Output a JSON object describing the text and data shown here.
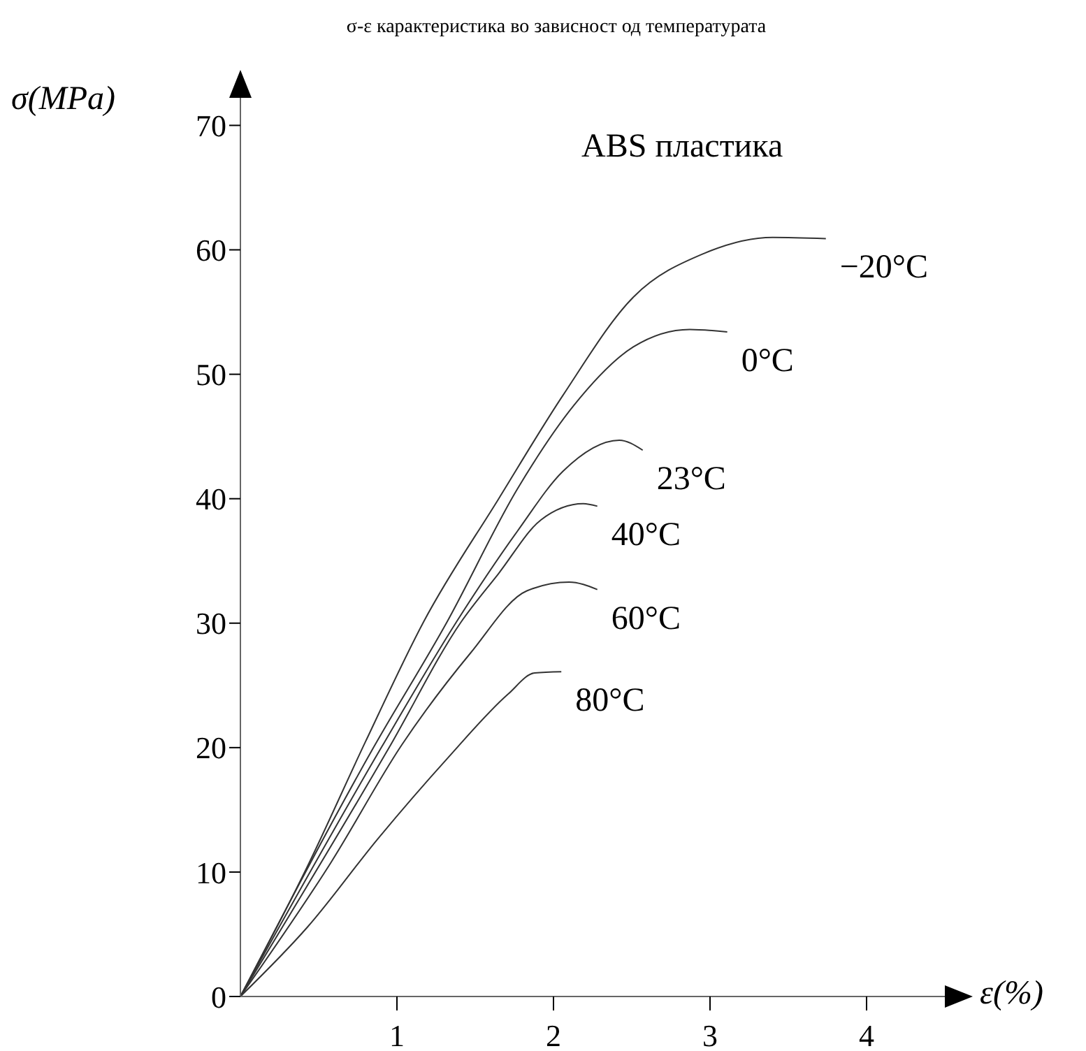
{
  "chart_data": {
    "type": "line",
    "title": "σ-ε карактеристика во зависност од температурата",
    "xlabel": "ε(%)",
    "ylabel": "σ(MPa)",
    "annotations": [
      "ABS пластика"
    ],
    "xlim": [
      0,
      4.5
    ],
    "xticks": [
      1,
      2,
      3,
      4
    ],
    "ylim": [
      0,
      73
    ],
    "yticks": [
      0,
      10,
      20,
      30,
      40,
      50,
      60,
      70
    ],
    "grid": false,
    "legend": false,
    "marker": "none",
    "line_style": "solid",
    "series": [
      {
        "name": "−20°C",
        "color": "#333333",
        "x": [
          0,
          0.43,
          0.8,
          1.17,
          1.65,
          2.06,
          2.51,
          2.96,
          3.4,
          3.74
        ],
        "values": [
          0,
          10.5,
          20.5,
          30.1,
          40,
          48.3,
          56.2,
          59.7,
          61,
          60.9
        ]
      },
      {
        "name": "0°C",
        "color": "#333333",
        "x": [
          0,
          0.85,
          1.32,
          1.77,
          2.13,
          2.51,
          2.87,
          3.11
        ],
        "values": [
          0,
          20,
          30.1,
          40.8,
          47.5,
          52.2,
          53.6,
          53.4
        ]
      },
      {
        "name": "23°C",
        "color": "#333333",
        "x": [
          0,
          0.9,
          1.38,
          1.77,
          2.06,
          2.42,
          2.57
        ],
        "values": [
          0,
          20,
          30.1,
          37.4,
          42.2,
          44.7,
          43.9
        ]
      },
      {
        "name": "40°C",
        "color": "#333333",
        "x": [
          0,
          0.95,
          1.41,
          1.65,
          1.92,
          2.19,
          2.28
        ],
        "values": [
          0,
          20,
          30.1,
          34,
          38.3,
          39.6,
          39.4
        ]
      },
      {
        "name": "60°C",
        "color": "#333333",
        "x": [
          0,
          0.58,
          1.03,
          1.47,
          1.83,
          2.1,
          2.28
        ],
        "values": [
          0,
          10.8,
          20.2,
          27.6,
          32.6,
          33.3,
          32.7
        ]
      },
      {
        "name": "80°C",
        "color": "#333333",
        "x": [
          0,
          0.43,
          0.88,
          1.32,
          1.71,
          1.88,
          2.05
        ],
        "values": [
          0,
          5.6,
          12.7,
          19.1,
          24.3,
          26,
          26.1
        ]
      }
    ]
  }
}
